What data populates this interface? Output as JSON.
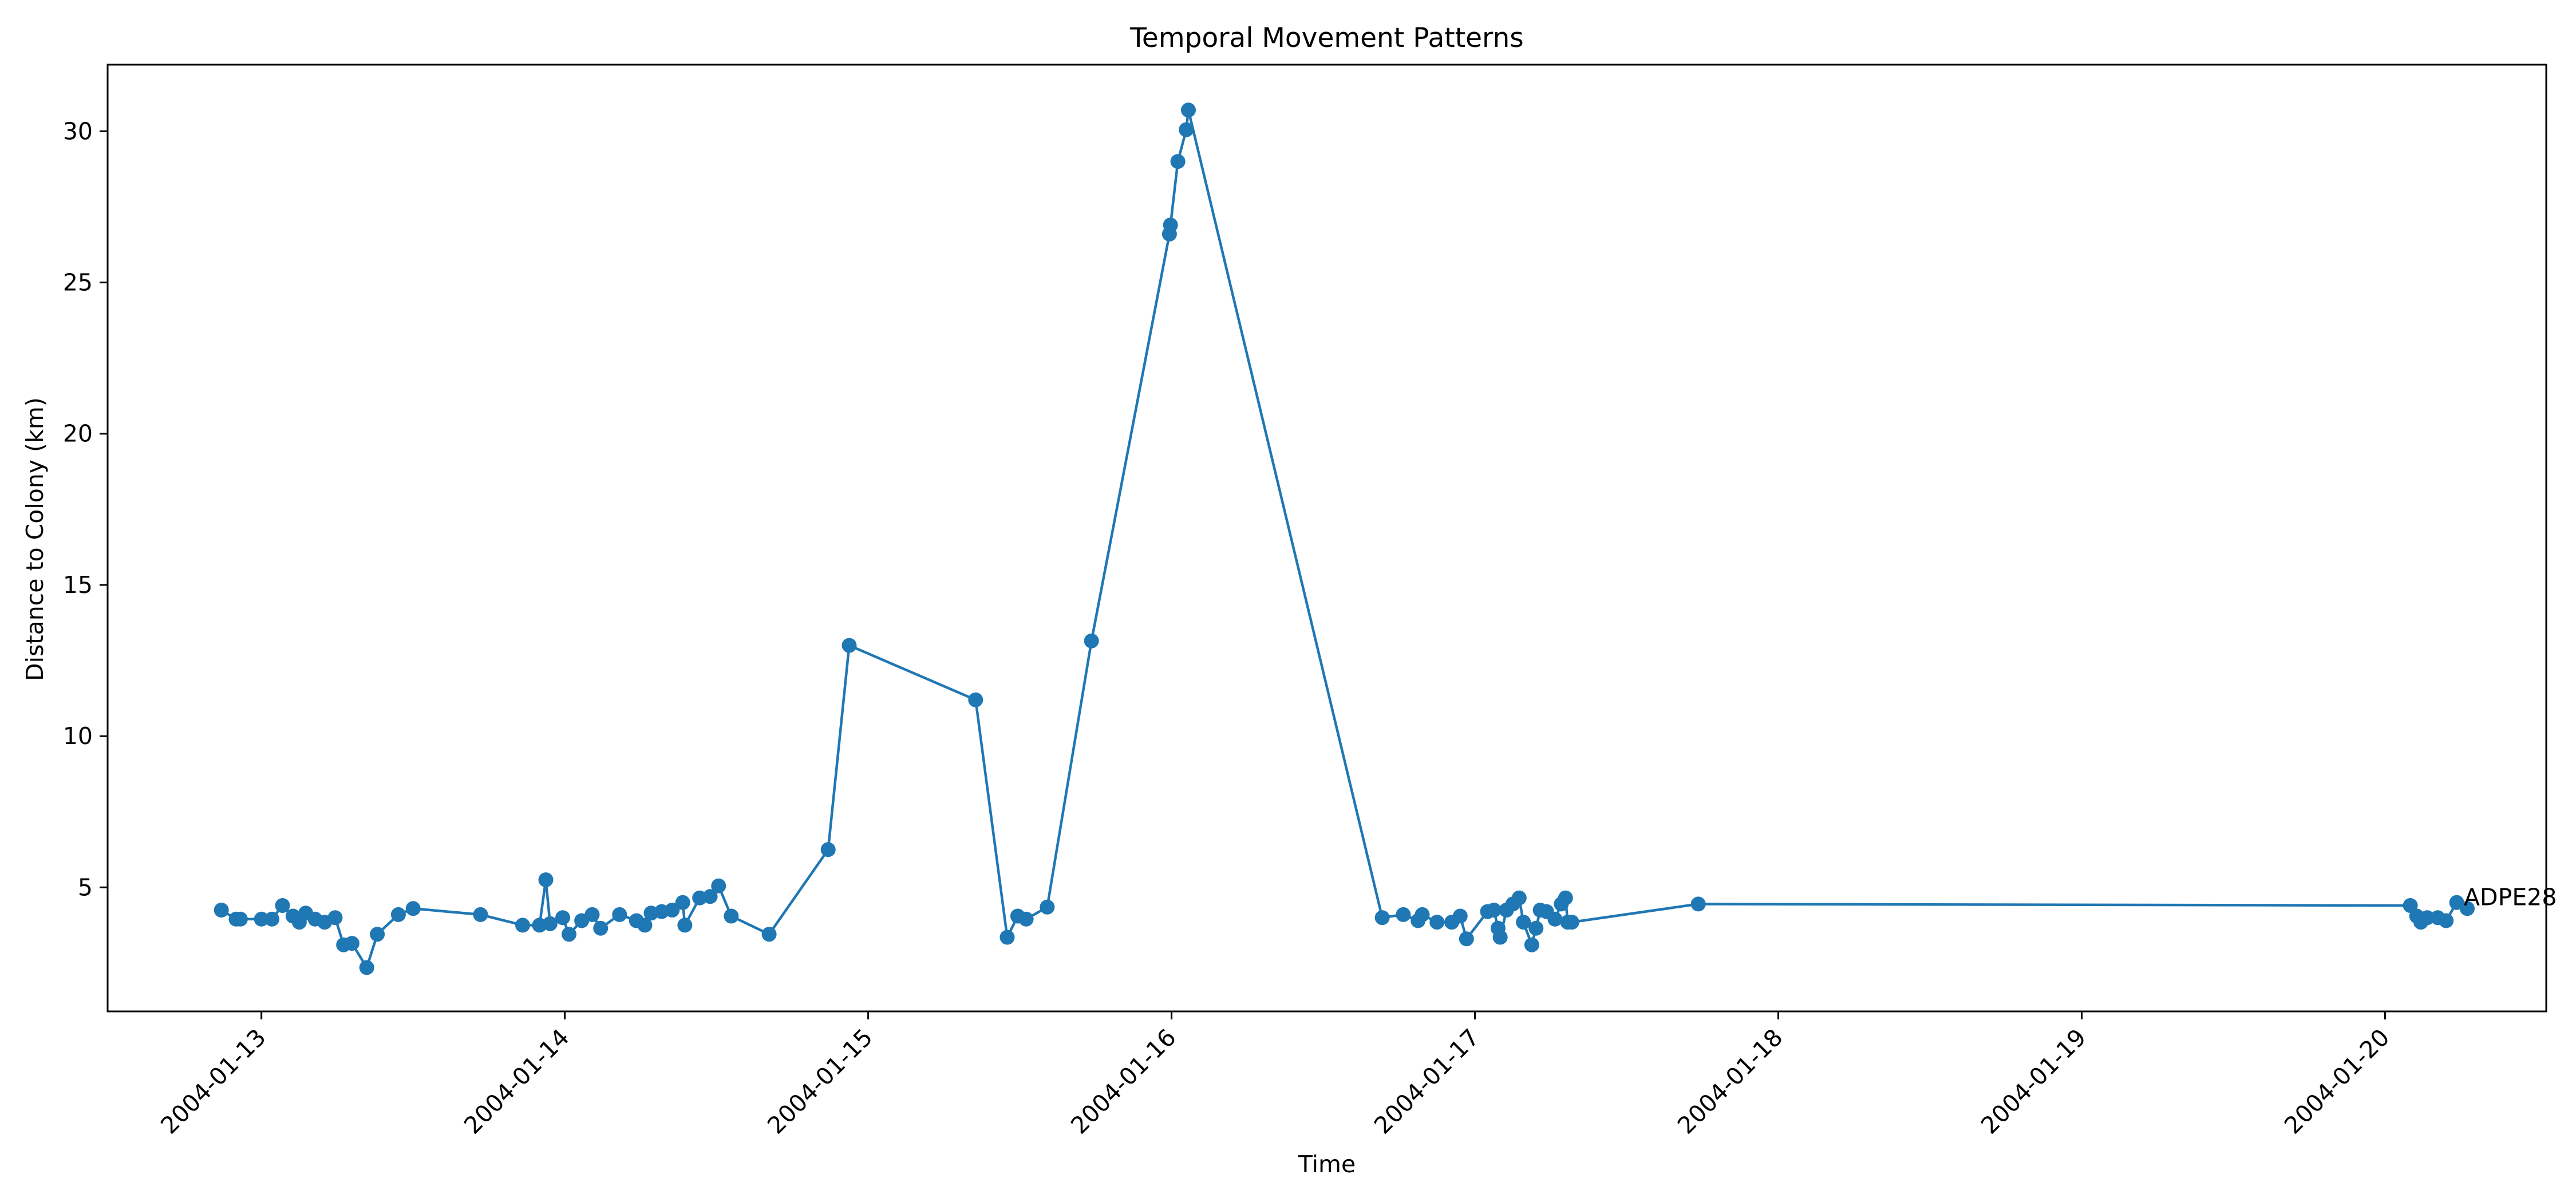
{
  "chart_data": {
    "type": "line",
    "title": "Temporal Movement Patterns",
    "xlabel": "Time",
    "ylabel": "Distance to Colony (km)",
    "x_tick_labels": [
      "2004-01-13",
      "2004-01-14",
      "2004-01-15",
      "2004-01-16",
      "2004-01-17",
      "2004-01-18",
      "2004-01-19",
      "2004-01-20"
    ],
    "y_ticks": [
      5,
      10,
      15,
      20,
      25,
      30
    ],
    "xlim": [
      "2004-01-12 11:50",
      "2004-01-20 12:45"
    ],
    "ylim": [
      0.9,
      32.2
    ],
    "grid": false,
    "legend": "none",
    "markers": true,
    "color": "#1f77b4",
    "series": [
      {
        "end_label": "ADPE28",
        "x": [
          "2004-01-12 20:50",
          "2004-01-12 22:00",
          "2004-01-12 22:20",
          "2004-01-13 00:00",
          "2004-01-13 00:50",
          "2004-01-13 01:40",
          "2004-01-13 02:30",
          "2004-01-13 03:00",
          "2004-01-13 03:30",
          "2004-01-13 04:15",
          "2004-01-13 05:00",
          "2004-01-13 05:50",
          "2004-01-13 06:30",
          "2004-01-13 07:10",
          "2004-01-13 08:20",
          "2004-01-13 09:10",
          "2004-01-13 10:50",
          "2004-01-13 12:00",
          "2004-01-13 17:20",
          "2004-01-13 20:40",
          "2004-01-13 22:00",
          "2004-01-13 22:30",
          "2004-01-13 22:50",
          "2004-01-13 23:50",
          "2004-01-14 00:20",
          "2004-01-14 01:20",
          "2004-01-14 02:10",
          "2004-01-14 02:50",
          "2004-01-14 04:20",
          "2004-01-14 05:40",
          "2004-01-14 06:20",
          "2004-01-14 06:50",
          "2004-01-14 07:40",
          "2004-01-14 08:30",
          "2004-01-14 09:20",
          "2004-01-14 09:30",
          "2004-01-14 10:40",
          "2004-01-14 11:30",
          "2004-01-14 12:10",
          "2004-01-14 13:10",
          "2004-01-14 16:10",
          "2004-01-14 20:50",
          "2004-01-14 22:30",
          "2004-01-15 08:30",
          "2004-01-15 11:00",
          "2004-01-15 11:50",
          "2004-01-15 12:30",
          "2004-01-15 14:10",
          "2004-01-15 17:40",
          "2004-01-15 23:50",
          "2004-01-15 23:55",
          "2004-01-16 00:30",
          "2004-01-16 01:10",
          "2004-01-16 01:20",
          "2004-01-16 16:40",
          "2004-01-16 18:20",
          "2004-01-16 19:30",
          "2004-01-16 19:50",
          "2004-01-16 21:00",
          "2004-01-16 22:10",
          "2004-01-16 22:50",
          "2004-01-16 23:20",
          "2004-01-17 01:00",
          "2004-01-17 01:30",
          "2004-01-17 01:50",
          "2004-01-17 02:00",
          "2004-01-17 02:30",
          "2004-01-17 03:00",
          "2004-01-17 03:30",
          "2004-01-17 03:50",
          "2004-01-17 04:30",
          "2004-01-17 04:50",
          "2004-01-17 05:10",
          "2004-01-17 05:40",
          "2004-01-17 06:20",
          "2004-01-17 06:50",
          "2004-01-17 07:10",
          "2004-01-17 07:20",
          "2004-01-17 07:40",
          "2004-01-17 17:40",
          "2004-01-20 02:00",
          "2004-01-20 02:30",
          "2004-01-20 02:50",
          "2004-01-20 03:20",
          "2004-01-20 04:10",
          "2004-01-20 04:50",
          "2004-01-20 05:40",
          "2004-01-20 06:30"
        ],
        "y": [
          4.25,
          3.95,
          3.95,
          3.95,
          3.95,
          4.4,
          4.05,
          3.85,
          4.15,
          3.95,
          3.85,
          4.0,
          3.1,
          3.15,
          2.35,
          3.45,
          4.1,
          4.3,
          4.1,
          3.75,
          3.75,
          5.25,
          3.8,
          4.0,
          3.45,
          3.9,
          4.1,
          3.65,
          4.1,
          3.9,
          3.75,
          4.15,
          4.2,
          4.25,
          4.5,
          3.75,
          4.65,
          4.7,
          5.05,
          4.05,
          3.45,
          6.25,
          13.0,
          11.2,
          3.35,
          4.05,
          3.95,
          4.35,
          13.15,
          26.6,
          26.9,
          29.0,
          30.05,
          30.7,
          4.0,
          4.1,
          3.9,
          4.1,
          3.85,
          3.85,
          4.05,
          3.3,
          4.2,
          4.25,
          3.65,
          3.35,
          4.25,
          4.45,
          4.65,
          3.85,
          3.1,
          3.65,
          4.25,
          4.2,
          3.95,
          4.45,
          4.65,
          3.85,
          3.85,
          4.45,
          4.4,
          4.05,
          3.85,
          4.0,
          4.0,
          3.9,
          4.5,
          4.3
        ]
      }
    ]
  }
}
